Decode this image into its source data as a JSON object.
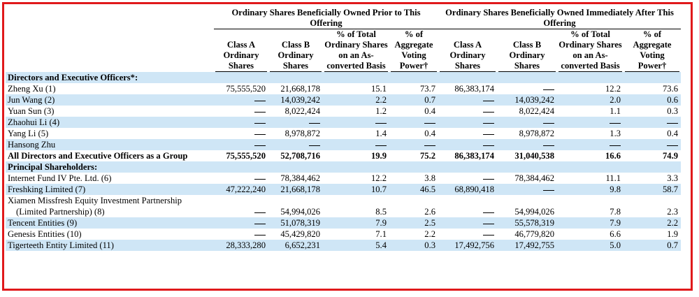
{
  "headers": {
    "prior_group": "Ordinary Shares Beneficially Owned Prior to This Offering",
    "after_group": "Ordinary Shares Beneficially Owned Immediately After This Offering",
    "columns": [
      "Class A Ordinary Shares",
      "Class B Ordinary Shares",
      "% of Total Ordinary Shares on an As-converted Basis",
      "% of Aggregate Voting Power†",
      "Class A Ordinary Shares",
      "Class B Ordinary Shares",
      "% of Total Ordinary Shares on an As-converted Basis",
      "% of Aggregate Voting Power†"
    ]
  },
  "rows": [
    {
      "type": "section",
      "label": "Directors and Executive Officers*:",
      "shade": true
    },
    {
      "type": "data",
      "label": "Zheng Xu (1)",
      "shade": false,
      "values": [
        "75,555,520",
        "21,668,178",
        "15.1",
        "73.7",
        "86,383,174",
        "—",
        "12.2",
        "73.6"
      ]
    },
    {
      "type": "data",
      "label": "Jun Wang (2)",
      "shade": true,
      "values": [
        "—",
        "14,039,242",
        "2.2",
        "0.7",
        "—",
        "14,039,242",
        "2.0",
        "0.6"
      ]
    },
    {
      "type": "data",
      "label": "Yuan Sun (3)",
      "shade": false,
      "values": [
        "—",
        "8,022,424",
        "1.2",
        "0.4",
        "—",
        "8,022,424",
        "1.1",
        "0.3"
      ]
    },
    {
      "type": "data",
      "label": "Zhaohui Li (4)",
      "shade": true,
      "values": [
        "—",
        "—",
        "—",
        "—",
        "—",
        "—",
        "—",
        "—"
      ]
    },
    {
      "type": "data",
      "label": "Yang Li (5)",
      "shade": false,
      "values": [
        "—",
        "8,978,872",
        "1.4",
        "0.4",
        "—",
        "8,978,872",
        "1.3",
        "0.4"
      ]
    },
    {
      "type": "data",
      "label": "Hansong Zhu",
      "shade": true,
      "values": [
        "—",
        "—",
        "—",
        "—",
        "—",
        "—",
        "—",
        "—"
      ]
    },
    {
      "type": "total",
      "label": "All Directors and Executive Officers as a Group",
      "shade": false,
      "values": [
        "75,555,520",
        "52,708,716",
        "19.9",
        "75.2",
        "86,383,174",
        "31,040,538",
        "16.6",
        "74.9"
      ]
    },
    {
      "type": "section",
      "label": "Principal Shareholders:",
      "shade": true
    },
    {
      "type": "data",
      "label": "Internet Fund IV Pte. Ltd. (6)",
      "shade": false,
      "values": [
        "—",
        "78,384,462",
        "12.2",
        "3.8",
        "—",
        "78,384,462",
        "11.1",
        "3.3"
      ]
    },
    {
      "type": "data",
      "label": "Freshking Limited (7)",
      "shade": true,
      "values": [
        "47,222,240",
        "21,668,178",
        "10.7",
        "46.5",
        "68,890,418",
        "—",
        "9.8",
        "58.7"
      ]
    },
    {
      "type": "data",
      "label": "Xiamen Missfresh Equity Investment Partnership",
      "label2": "(Limited Partnership) (8)",
      "shade": false,
      "values": [
        "—",
        "54,994,026",
        "8.5",
        "2.6",
        "—",
        "54,994,026",
        "7.8",
        "2.3"
      ]
    },
    {
      "type": "data",
      "label": "Tencent Entities (9)",
      "shade": true,
      "values": [
        "—",
        "51,078,319",
        "7.9",
        "2.5",
        "—",
        "55,578,319",
        "7.9",
        "2.2"
      ]
    },
    {
      "type": "data",
      "label": "Genesis Entities (10)",
      "shade": false,
      "values": [
        "—",
        "45,429,820",
        "7.1",
        "2.2",
        "—",
        "46,779,820",
        "6.6",
        "1.9"
      ]
    },
    {
      "type": "data",
      "label": "Tigerteeth Entity Limited (11)",
      "shade": true,
      "values": [
        "28,333,280",
        "6,652,231",
        "5.4",
        "0.3",
        "17,492,756",
        "17,492,755",
        "5.0",
        "0.7"
      ]
    }
  ]
}
